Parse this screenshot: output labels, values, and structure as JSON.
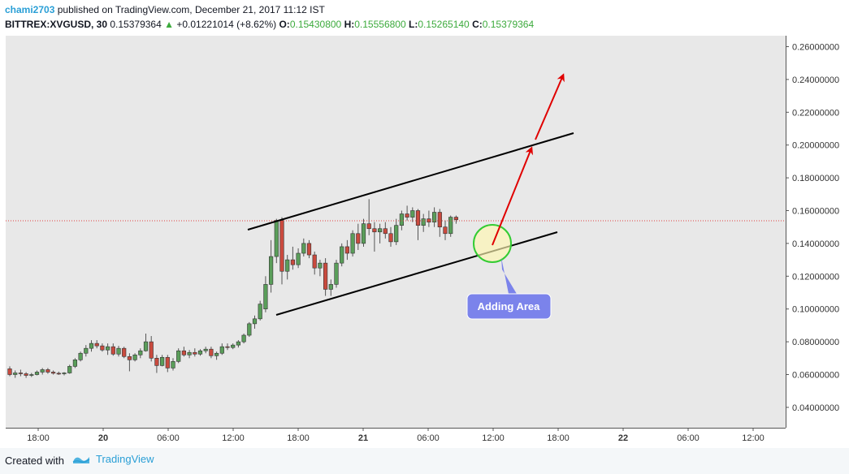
{
  "header": {
    "author": "chami2703",
    "published_text": " published on TradingView.com, December 21, 2017 11:12 IST",
    "symbol": "BITTREX:XVGUSD, 30",
    "last_price": "0.15379364",
    "change_arrow": "▲",
    "change": "+0.01221014 (+8.62%)",
    "open_label": "O:",
    "open": "0.15430800",
    "high_label": "H:",
    "high": "0.15556800",
    "low_label": "L:",
    "low": "0.15265140",
    "close_label": "C:",
    "close": "0.15379364"
  },
  "colors": {
    "up": "#5a9e5a",
    "down": "#c94a3e",
    "channel": "#000000",
    "arrow": "#e00000",
    "circle_fill": "#fff7b0",
    "circle_stroke": "#33cc33",
    "callout": "#7b83eb",
    "price_line": "#e04040",
    "plot_bg": "#e8e8e8"
  },
  "annotation": {
    "label": "Adding Area"
  },
  "footer": {
    "created_with": "Created with",
    "brand": "TradingView"
  },
  "chart_data": {
    "type": "candlestick",
    "symbol": "BITTREX:XVGUSD",
    "interval": "30",
    "ylim": [
      0.03,
      0.265
    ],
    "y_ticks": [
      "0.26000000",
      "0.24000000",
      "0.22000000",
      "0.20000000",
      "0.18000000",
      "0.16000000",
      "0.14000000",
      "0.12000000",
      "0.10000000",
      "0.08000000",
      "0.06000000",
      "0.04000000"
    ],
    "x_ticks": [
      "18:00",
      "20",
      "06:00",
      "12:00",
      "18:00",
      "21",
      "06:00",
      "12:00",
      "18:00",
      "22",
      "06:00",
      "12:00"
    ],
    "current_price": 0.15379364,
    "candles": [
      {
        "o": 0.0635,
        "h": 0.065,
        "l": 0.059,
        "c": 0.06
      },
      {
        "o": 0.06,
        "h": 0.0625,
        "l": 0.058,
        "c": 0.061
      },
      {
        "o": 0.061,
        "h": 0.063,
        "l": 0.059,
        "c": 0.0605
      },
      {
        "o": 0.0605,
        "h": 0.0615,
        "l": 0.058,
        "c": 0.0595
      },
      {
        "o": 0.0595,
        "h": 0.061,
        "l": 0.0585,
        "c": 0.06
      },
      {
        "o": 0.06,
        "h": 0.0625,
        "l": 0.0595,
        "c": 0.0615
      },
      {
        "o": 0.0615,
        "h": 0.064,
        "l": 0.06,
        "c": 0.063
      },
      {
        "o": 0.063,
        "h": 0.064,
        "l": 0.0605,
        "c": 0.0615
      },
      {
        "o": 0.0615,
        "h": 0.0625,
        "l": 0.06,
        "c": 0.0608
      },
      {
        "o": 0.0608,
        "h": 0.0618,
        "l": 0.0598,
        "c": 0.0605
      },
      {
        "o": 0.0605,
        "h": 0.0615,
        "l": 0.0595,
        "c": 0.061
      },
      {
        "o": 0.061,
        "h": 0.066,
        "l": 0.0605,
        "c": 0.065
      },
      {
        "o": 0.065,
        "h": 0.07,
        "l": 0.064,
        "c": 0.069
      },
      {
        "o": 0.069,
        "h": 0.074,
        "l": 0.068,
        "c": 0.073
      },
      {
        "o": 0.073,
        "h": 0.078,
        "l": 0.071,
        "c": 0.076
      },
      {
        "o": 0.076,
        "h": 0.081,
        "l": 0.074,
        "c": 0.079
      },
      {
        "o": 0.079,
        "h": 0.081,
        "l": 0.076,
        "c": 0.0775
      },
      {
        "o": 0.0775,
        "h": 0.079,
        "l": 0.074,
        "c": 0.075
      },
      {
        "o": 0.075,
        "h": 0.079,
        "l": 0.072,
        "c": 0.077
      },
      {
        "o": 0.077,
        "h": 0.079,
        "l": 0.0715,
        "c": 0.0725
      },
      {
        "o": 0.0725,
        "h": 0.0775,
        "l": 0.071,
        "c": 0.076
      },
      {
        "o": 0.076,
        "h": 0.077,
        "l": 0.07,
        "c": 0.071
      },
      {
        "o": 0.071,
        "h": 0.073,
        "l": 0.062,
        "c": 0.069
      },
      {
        "o": 0.069,
        "h": 0.073,
        "l": 0.068,
        "c": 0.072
      },
      {
        "o": 0.072,
        "h": 0.076,
        "l": 0.07,
        "c": 0.0745
      },
      {
        "o": 0.0745,
        "h": 0.085,
        "l": 0.074,
        "c": 0.08
      },
      {
        "o": 0.08,
        "h": 0.0835,
        "l": 0.068,
        "c": 0.07
      },
      {
        "o": 0.07,
        "h": 0.072,
        "l": 0.061,
        "c": 0.0655
      },
      {
        "o": 0.0655,
        "h": 0.072,
        "l": 0.065,
        "c": 0.0705
      },
      {
        "o": 0.0705,
        "h": 0.072,
        "l": 0.0615,
        "c": 0.064
      },
      {
        "o": 0.064,
        "h": 0.07,
        "l": 0.0625,
        "c": 0.068
      },
      {
        "o": 0.068,
        "h": 0.076,
        "l": 0.067,
        "c": 0.0745
      },
      {
        "o": 0.0745,
        "h": 0.077,
        "l": 0.071,
        "c": 0.072
      },
      {
        "o": 0.072,
        "h": 0.075,
        "l": 0.07,
        "c": 0.0735
      },
      {
        "o": 0.0735,
        "h": 0.076,
        "l": 0.071,
        "c": 0.0725
      },
      {
        "o": 0.0725,
        "h": 0.0755,
        "l": 0.0715,
        "c": 0.0745
      },
      {
        "o": 0.0745,
        "h": 0.077,
        "l": 0.073,
        "c": 0.0755
      },
      {
        "o": 0.0755,
        "h": 0.077,
        "l": 0.07,
        "c": 0.0715
      },
      {
        "o": 0.0715,
        "h": 0.074,
        "l": 0.069,
        "c": 0.073
      },
      {
        "o": 0.073,
        "h": 0.079,
        "l": 0.072,
        "c": 0.077
      },
      {
        "o": 0.077,
        "h": 0.079,
        "l": 0.075,
        "c": 0.0765
      },
      {
        "o": 0.0765,
        "h": 0.079,
        "l": 0.0755,
        "c": 0.078
      },
      {
        "o": 0.078,
        "h": 0.081,
        "l": 0.0765,
        "c": 0.08
      },
      {
        "o": 0.08,
        "h": 0.085,
        "l": 0.079,
        "c": 0.084
      },
      {
        "o": 0.084,
        "h": 0.092,
        "l": 0.083,
        "c": 0.091
      },
      {
        "o": 0.091,
        "h": 0.096,
        "l": 0.088,
        "c": 0.094
      },
      {
        "o": 0.094,
        "h": 0.105,
        "l": 0.093,
        "c": 0.103
      },
      {
        "o": 0.1,
        "h": 0.12,
        "l": 0.098,
        "c": 0.115
      },
      {
        "o": 0.115,
        "h": 0.142,
        "l": 0.11,
        "c": 0.132
      },
      {
        "o": 0.132,
        "h": 0.155,
        "l": 0.128,
        "c": 0.154
      },
      {
        "o": 0.154,
        "h": 0.156,
        "l": 0.115,
        "c": 0.123
      },
      {
        "o": 0.123,
        "h": 0.133,
        "l": 0.118,
        "c": 0.13
      },
      {
        "o": 0.13,
        "h": 0.138,
        "l": 0.124,
        "c": 0.127
      },
      {
        "o": 0.127,
        "h": 0.137,
        "l": 0.125,
        "c": 0.134
      },
      {
        "o": 0.134,
        "h": 0.143,
        "l": 0.132,
        "c": 0.14
      },
      {
        "o": 0.14,
        "h": 0.142,
        "l": 0.131,
        "c": 0.133
      },
      {
        "o": 0.133,
        "h": 0.135,
        "l": 0.121,
        "c": 0.125
      },
      {
        "o": 0.125,
        "h": 0.13,
        "l": 0.12,
        "c": 0.128
      },
      {
        "o": 0.128,
        "h": 0.131,
        "l": 0.108,
        "c": 0.112
      },
      {
        "o": 0.112,
        "h": 0.118,
        "l": 0.108,
        "c": 0.115
      },
      {
        "o": 0.115,
        "h": 0.13,
        "l": 0.113,
        "c": 0.128
      },
      {
        "o": 0.128,
        "h": 0.14,
        "l": 0.126,
        "c": 0.138
      },
      {
        "o": 0.138,
        "h": 0.142,
        "l": 0.13,
        "c": 0.134
      },
      {
        "o": 0.134,
        "h": 0.148,
        "l": 0.132,
        "c": 0.146
      },
      {
        "o": 0.146,
        "h": 0.152,
        "l": 0.136,
        "c": 0.14
      },
      {
        "o": 0.14,
        "h": 0.155,
        "l": 0.138,
        "c": 0.152
      },
      {
        "o": 0.152,
        "h": 0.167,
        "l": 0.145,
        "c": 0.149
      },
      {
        "o": 0.149,
        "h": 0.153,
        "l": 0.135,
        "c": 0.147
      },
      {
        "o": 0.147,
        "h": 0.152,
        "l": 0.14,
        "c": 0.149
      },
      {
        "o": 0.149,
        "h": 0.153,
        "l": 0.143,
        "c": 0.146
      },
      {
        "o": 0.146,
        "h": 0.15,
        "l": 0.138,
        "c": 0.141
      },
      {
        "o": 0.141,
        "h": 0.155,
        "l": 0.139,
        "c": 0.151
      },
      {
        "o": 0.151,
        "h": 0.16,
        "l": 0.148,
        "c": 0.158
      },
      {
        "o": 0.158,
        "h": 0.163,
        "l": 0.154,
        "c": 0.156
      },
      {
        "o": 0.156,
        "h": 0.162,
        "l": 0.153,
        "c": 0.16
      },
      {
        "o": 0.16,
        "h": 0.161,
        "l": 0.142,
        "c": 0.151
      },
      {
        "o": 0.151,
        "h": 0.158,
        "l": 0.147,
        "c": 0.155
      },
      {
        "o": 0.155,
        "h": 0.16,
        "l": 0.15,
        "c": 0.153
      },
      {
        "o": 0.153,
        "h": 0.162,
        "l": 0.15,
        "c": 0.159
      },
      {
        "o": 0.159,
        "h": 0.161,
        "l": 0.144,
        "c": 0.15
      },
      {
        "o": 0.15,
        "h": 0.154,
        "l": 0.142,
        "c": 0.146
      },
      {
        "o": 0.146,
        "h": 0.157,
        "l": 0.144,
        "c": 0.156
      },
      {
        "o": 0.156,
        "h": 0.157,
        "l": 0.152,
        "c": 0.1545
      }
    ]
  }
}
